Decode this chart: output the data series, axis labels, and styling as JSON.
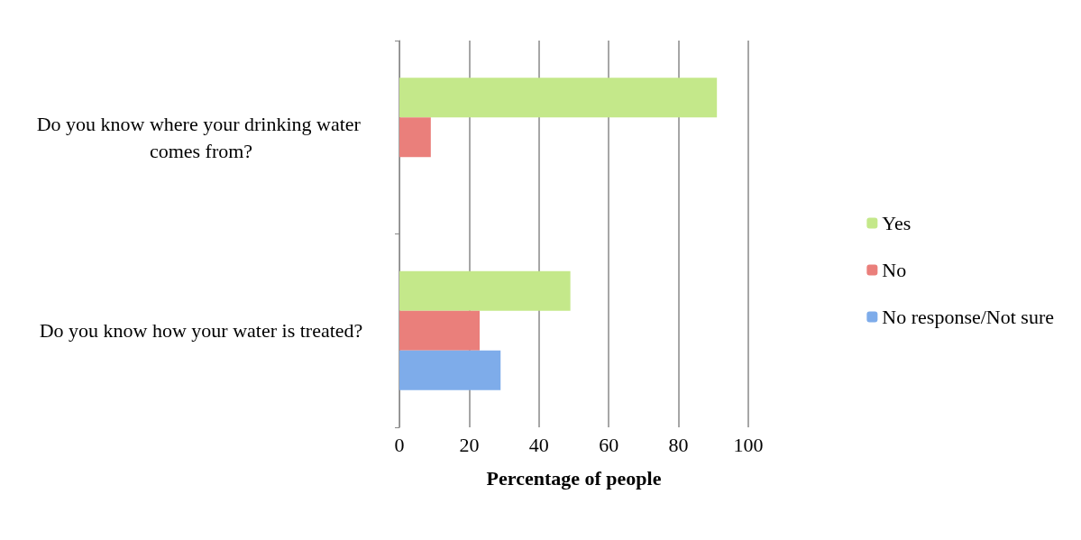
{
  "chart_data": {
    "type": "bar",
    "orientation": "horizontal",
    "xlabel": "Percentage of people",
    "categories": [
      "Do you know where your drinking water comes from?",
      "Do you know how your water is treated?"
    ],
    "series": [
      {
        "name": "Yes",
        "color": "#c4e88a",
        "values": [
          91,
          49
        ]
      },
      {
        "name": "No",
        "color": "#ea7f7b",
        "values": [
          9,
          23
        ]
      },
      {
        "name": "No response/Not sure",
        "color": "#7eacea",
        "values": [
          null,
          29
        ]
      }
    ],
    "xlim": [
      0,
      100
    ],
    "xticks": [
      0,
      20,
      40,
      60,
      80,
      100
    ],
    "grid": "x",
    "legend": "right"
  }
}
